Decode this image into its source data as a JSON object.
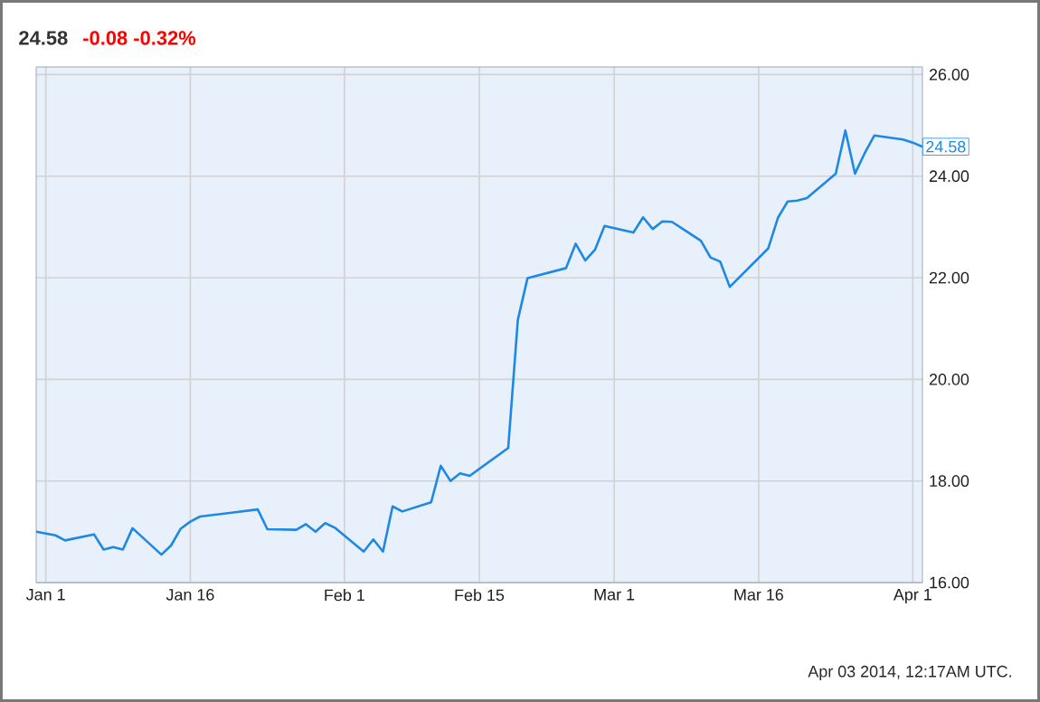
{
  "chart_data": {
    "type": "line",
    "title": "24.58",
    "subtitle": "-0.08  -0.32%",
    "annotations": [
      {
        "text": "24.58",
        "x": "2014-04-02",
        "y": 24.58
      },
      "Apr 03 2014, 12:17AM UTC."
    ],
    "x": [
      "2013-12-31",
      "2014-01-02",
      "2014-01-03",
      "2014-01-06",
      "2014-01-07",
      "2014-01-08",
      "2014-01-09",
      "2014-01-10",
      "2014-01-13",
      "2014-01-14",
      "2014-01-15",
      "2014-01-16",
      "2014-01-17",
      "2014-01-23",
      "2014-01-24",
      "2014-01-27",
      "2014-01-28",
      "2014-01-29",
      "2014-01-30",
      "2014-01-31",
      "2014-02-03",
      "2014-02-04",
      "2014-02-05",
      "2014-02-06",
      "2014-02-07",
      "2014-02-10",
      "2014-02-11",
      "2014-02-12",
      "2014-02-13",
      "2014-02-14",
      "2014-02-18",
      "2014-02-19",
      "2014-02-20",
      "2014-02-24",
      "2014-02-25",
      "2014-02-26",
      "2014-02-27",
      "2014-02-28",
      "2014-03-03",
      "2014-03-04",
      "2014-03-05",
      "2014-03-06",
      "2014-03-07",
      "2014-03-10",
      "2014-03-11",
      "2014-03-12",
      "2014-03-13",
      "2014-03-17",
      "2014-03-18",
      "2014-03-19",
      "2014-03-20",
      "2014-03-21",
      "2014-03-24",
      "2014-03-25",
      "2014-03-26",
      "2014-03-27",
      "2014-03-28",
      "2014-03-31",
      "2014-04-01",
      "2014-04-02"
    ],
    "series": [
      {
        "color": "#1e88e5",
        "values": [
          17.0,
          16.93,
          16.83,
          16.95,
          16.65,
          16.7,
          16.65,
          17.07,
          16.55,
          16.73,
          17.06,
          17.2,
          17.3,
          17.44,
          17.05,
          17.04,
          17.15,
          17.0,
          17.17,
          17.08,
          16.61,
          16.85,
          16.61,
          17.5,
          17.4,
          17.58,
          18.3,
          18.0,
          18.15,
          18.1,
          18.65,
          21.17,
          21.99,
          22.19,
          22.67,
          22.34,
          22.55,
          23.02,
          22.89,
          23.19,
          22.96,
          23.11,
          23.1,
          22.73,
          22.4,
          22.32,
          21.82,
          22.58,
          23.18,
          23.5,
          23.52,
          23.57,
          24.05,
          24.9,
          24.05,
          24.45,
          24.8,
          24.72,
          24.66,
          24.58
        ]
      }
    ],
    "xlim": [
      "2013-12-31",
      "2014-04-02"
    ],
    "xticks": [
      {
        "value": "2014-01-01",
        "label": "Jan 1"
      },
      {
        "value": "2014-01-16",
        "label": "Jan 16"
      },
      {
        "value": "2014-02-01",
        "label": "Feb 1"
      },
      {
        "value": "2014-02-15",
        "label": "Feb 15"
      },
      {
        "value": "2014-03-01",
        "label": "Mar 1"
      },
      {
        "value": "2014-03-16",
        "label": "Mar 16"
      },
      {
        "value": "2014-04-01",
        "label": "Apr 1"
      }
    ],
    "ylim": [
      16,
      26.15
    ],
    "yticks": [
      {
        "value": 16,
        "label": "16.00"
      },
      {
        "value": 18,
        "label": "18.00"
      },
      {
        "value": 20,
        "label": "20.00"
      },
      {
        "value": 22,
        "label": "22.00"
      },
      {
        "value": 24,
        "label": "24.00"
      },
      {
        "value": 26,
        "label": "26.00"
      }
    ],
    "grid": true,
    "marker": "none",
    "line_style": "solid"
  }
}
